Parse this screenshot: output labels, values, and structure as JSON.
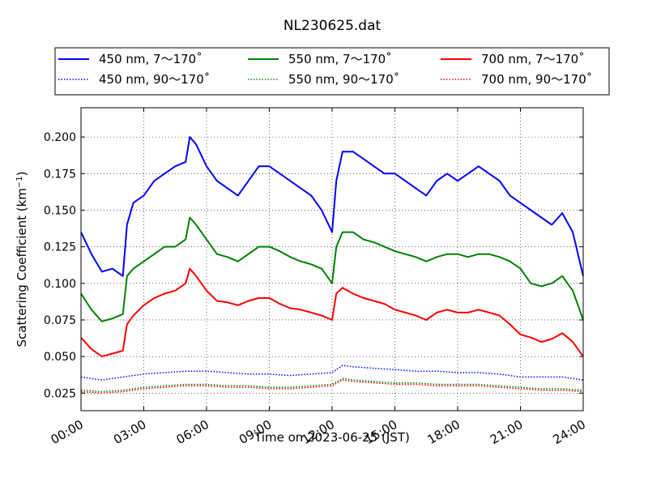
{
  "chart_data": {
    "type": "line",
    "title": "NL230625.dat",
    "xlabel": "Time on 2023-06-25 (JST)",
    "ylabel": "Scattering Coefficient (km",
    "ylabel_sup": "−1",
    "ylabel_close": ")",
    "xlim": [
      0,
      24
    ],
    "ylim": [
      0.013,
      0.22
    ],
    "x_tick_values": [
      0,
      3,
      6,
      9,
      12,
      15,
      18,
      21,
      24
    ],
    "x_tick_labels": [
      "00:00",
      "03:00",
      "06:00",
      "09:00",
      "12:00",
      "15:00",
      "18:00",
      "21:00",
      "24:00"
    ],
    "y_tick_values": [
      0.025,
      0.05,
      0.075,
      0.1,
      0.125,
      0.15,
      0.175,
      0.2
    ],
    "y_tick_labels": [
      "0.025",
      "0.050",
      "0.075",
      "0.100",
      "0.125",
      "0.150",
      "0.175",
      "0.200"
    ],
    "grid": true,
    "legend_placement": "above plot, 3 columns",
    "series": [
      {
        "name": "450 nm, 7～170˚",
        "color": "#0000ff",
        "style": "solid",
        "x": [
          0,
          0.5,
          1,
          1.5,
          2,
          2.2,
          2.5,
          3,
          3.5,
          4,
          4.5,
          5,
          5.2,
          5.5,
          6,
          6.5,
          7,
          7.5,
          8,
          8.5,
          9,
          9.5,
          10,
          10.5,
          11,
          11.5,
          12,
          12.2,
          12.5,
          13,
          13.5,
          14,
          14.5,
          15,
          15.5,
          16,
          16.5,
          17,
          17.5,
          18,
          18.5,
          19,
          19.5,
          20,
          20.5,
          21,
          21.5,
          22,
          22.5,
          23,
          23.5,
          24
        ],
        "y": [
          0.135,
          0.12,
          0.108,
          0.11,
          0.105,
          0.14,
          0.155,
          0.16,
          0.17,
          0.175,
          0.18,
          0.183,
          0.2,
          0.195,
          0.18,
          0.17,
          0.165,
          0.16,
          0.17,
          0.18,
          0.18,
          0.175,
          0.17,
          0.165,
          0.16,
          0.15,
          0.135,
          0.17,
          0.19,
          0.19,
          0.185,
          0.18,
          0.175,
          0.175,
          0.17,
          0.165,
          0.16,
          0.17,
          0.175,
          0.17,
          0.175,
          0.18,
          0.175,
          0.17,
          0.16,
          0.155,
          0.15,
          0.145,
          0.14,
          0.148,
          0.135,
          0.105
        ]
      },
      {
        "name": "550 nm, 7～170˚",
        "color": "#008000",
        "style": "solid",
        "x": [
          0,
          0.5,
          1,
          1.5,
          2,
          2.2,
          2.5,
          3,
          3.5,
          4,
          4.5,
          5,
          5.2,
          5.5,
          6,
          6.5,
          7,
          7.5,
          8,
          8.5,
          9,
          9.5,
          10,
          10.5,
          11,
          11.5,
          12,
          12.2,
          12.5,
          13,
          13.5,
          14,
          14.5,
          15,
          15.5,
          16,
          16.5,
          17,
          17.5,
          18,
          18.5,
          19,
          19.5,
          20,
          20.5,
          21,
          21.5,
          22,
          22.5,
          23,
          23.5,
          24
        ],
        "y": [
          0.093,
          0.082,
          0.074,
          0.076,
          0.079,
          0.105,
          0.11,
          0.115,
          0.12,
          0.125,
          0.125,
          0.13,
          0.145,
          0.14,
          0.13,
          0.12,
          0.118,
          0.115,
          0.12,
          0.125,
          0.125,
          0.122,
          0.118,
          0.115,
          0.113,
          0.11,
          0.1,
          0.125,
          0.135,
          0.135,
          0.13,
          0.128,
          0.125,
          0.122,
          0.12,
          0.118,
          0.115,
          0.118,
          0.12,
          0.12,
          0.118,
          0.12,
          0.12,
          0.118,
          0.115,
          0.11,
          0.1,
          0.098,
          0.1,
          0.105,
          0.095,
          0.075
        ]
      },
      {
        "name": "700 nm, 7～170˚",
        "color": "#ff0000",
        "style": "solid",
        "x": [
          0,
          0.5,
          1,
          1.5,
          2,
          2.2,
          2.5,
          3,
          3.5,
          4,
          4.5,
          5,
          5.2,
          5.5,
          6,
          6.5,
          7,
          7.5,
          8,
          8.5,
          9,
          9.5,
          10,
          10.5,
          11,
          11.5,
          12,
          12.2,
          12.5,
          13,
          13.5,
          14,
          14.5,
          15,
          15.5,
          16,
          16.5,
          17,
          17.5,
          18,
          18.5,
          19,
          19.5,
          20,
          20.5,
          21,
          21.5,
          22,
          22.5,
          23,
          23.5,
          24
        ],
        "y": [
          0.063,
          0.055,
          0.05,
          0.052,
          0.054,
          0.072,
          0.078,
          0.085,
          0.09,
          0.093,
          0.095,
          0.1,
          0.11,
          0.105,
          0.095,
          0.088,
          0.087,
          0.085,
          0.088,
          0.09,
          0.09,
          0.086,
          0.083,
          0.082,
          0.08,
          0.078,
          0.075,
          0.093,
          0.097,
          0.093,
          0.09,
          0.088,
          0.086,
          0.082,
          0.08,
          0.078,
          0.075,
          0.08,
          0.082,
          0.08,
          0.08,
          0.082,
          0.08,
          0.078,
          0.072,
          0.065,
          0.063,
          0.06,
          0.062,
          0.066,
          0.06,
          0.05
        ]
      },
      {
        "name": "450 nm, 90～170˚",
        "color": "#0000ff",
        "style": "dotted",
        "x": [
          0,
          1,
          2,
          3,
          4,
          5,
          6,
          7,
          8,
          9,
          10,
          11,
          12,
          12.5,
          13,
          14,
          15,
          16,
          17,
          18,
          19,
          20,
          21,
          22,
          23,
          24
        ],
        "y": [
          0.036,
          0.034,
          0.036,
          0.038,
          0.039,
          0.04,
          0.04,
          0.039,
          0.038,
          0.038,
          0.037,
          0.038,
          0.039,
          0.044,
          0.043,
          0.042,
          0.041,
          0.04,
          0.04,
          0.039,
          0.039,
          0.038,
          0.036,
          0.036,
          0.036,
          0.034
        ]
      },
      {
        "name": "550 nm, 90～170˚",
        "color": "#008000",
        "style": "dotted",
        "x": [
          0,
          1,
          2,
          3,
          4,
          5,
          6,
          7,
          8,
          9,
          10,
          11,
          12,
          12.5,
          13,
          14,
          15,
          16,
          17,
          18,
          19,
          20,
          21,
          22,
          23,
          24
        ],
        "y": [
          0.027,
          0.026,
          0.027,
          0.029,
          0.03,
          0.031,
          0.031,
          0.03,
          0.03,
          0.029,
          0.029,
          0.03,
          0.031,
          0.035,
          0.034,
          0.033,
          0.032,
          0.032,
          0.031,
          0.031,
          0.031,
          0.03,
          0.029,
          0.028,
          0.028,
          0.027
        ]
      },
      {
        "name": "700 nm, 90～170˚",
        "color": "#ff0000",
        "style": "dotted",
        "x": [
          0,
          1,
          2,
          3,
          4,
          5,
          6,
          7,
          8,
          9,
          10,
          11,
          12,
          12.5,
          13,
          14,
          15,
          16,
          17,
          18,
          19,
          20,
          21,
          22,
          23,
          24
        ],
        "y": [
          0.026,
          0.025,
          0.026,
          0.028,
          0.029,
          0.03,
          0.03,
          0.029,
          0.029,
          0.028,
          0.028,
          0.029,
          0.03,
          0.034,
          0.033,
          0.032,
          0.031,
          0.031,
          0.03,
          0.03,
          0.03,
          0.029,
          0.028,
          0.027,
          0.027,
          0.026
        ]
      }
    ]
  }
}
